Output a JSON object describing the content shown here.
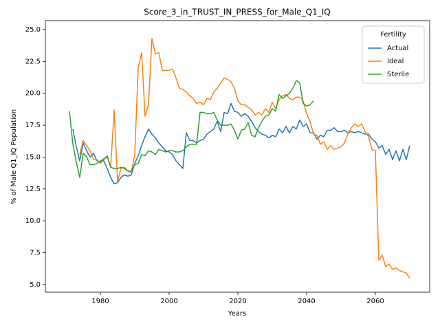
{
  "chart_data": {
    "type": "line",
    "title": "Score_3_in_TRUST_IN_PRESS_for_Male_Q1_IQ",
    "x_label": "Years",
    "y_label": "% of Male Q1_IQ Population",
    "legend_title": "Fertility",
    "legend_position": "upper right",
    "grid": false,
    "x": [
      1971,
      1972,
      1973,
      1974,
      1975,
      1976,
      1977,
      1978,
      1979,
      1980,
      1981,
      1982,
      1983,
      1984,
      1985,
      1986,
      1987,
      1988,
      1989,
      1990,
      1991,
      1992,
      1993,
      1994,
      1995,
      1996,
      1997,
      1998,
      1999,
      2000,
      2001,
      2002,
      2003,
      2004,
      2005,
      2006,
      2007,
      2008,
      2009,
      2010,
      2011,
      2012,
      2013,
      2014,
      2015,
      2016,
      2017,
      2018,
      2019,
      2020,
      2021,
      2022,
      2023,
      2024,
      2025,
      2026,
      2027,
      2028,
      2029,
      2030,
      2031,
      2032,
      2033,
      2034,
      2035,
      2036,
      2037,
      2038,
      2039,
      2040,
      2041,
      2042,
      2043,
      2044,
      2045,
      2046,
      2047,
      2048,
      2049,
      2050,
      2051,
      2052,
      2053,
      2054,
      2055,
      2056,
      2057,
      2058,
      2059,
      2060,
      2061,
      2062,
      2063,
      2064,
      2065,
      2066,
      2067,
      2068,
      2069,
      2070
    ],
    "xlim": [
      1964,
      2075.8
    ],
    "xticks": [
      1980,
      2000,
      2020,
      2040,
      2060
    ],
    "ylim": [
      4.4,
      25.7
    ],
    "yticks": [
      {
        "value": 5,
        "label": "5.0"
      },
      7.5,
      {
        "value": 10,
        "label": "10.0"
      },
      12.5,
      {
        "value": 15,
        "label": "15.0"
      },
      17.5,
      {
        "value": 20,
        "label": "20.0"
      },
      22.5,
      {
        "value": 25,
        "label": "25.0"
      }
    ],
    "series": [
      {
        "name": "Actual",
        "color": "#1f77b4",
        "values": [
          null,
          17.2,
          15.8,
          14.7,
          16.1,
          15.5,
          15.0,
          15.3,
          14.7,
          14.6,
          14.7,
          14.1,
          13.4,
          12.9,
          13.0,
          13.4,
          13.6,
          13.5,
          13.6,
          14.5,
          15.1,
          15.9,
          16.6,
          17.2,
          16.8,
          16.5,
          16.1,
          15.8,
          15.5,
          15.4,
          15.2,
          14.7,
          14.4,
          14.1,
          16.9,
          16.3,
          16.3,
          16.1,
          16.3,
          16.4,
          16.8,
          17.0,
          17.2,
          17.8,
          17.0,
          18.5,
          18.4,
          19.2,
          18.6,
          18.5,
          18.2,
          18.4,
          18.2,
          17.8,
          17.3,
          17.0,
          16.8,
          16.7,
          16.5,
          16.7,
          16.6,
          17.2,
          16.9,
          17.4,
          16.9,
          17.4,
          17.2,
          17.9,
          17.4,
          17.6,
          16.9,
          16.9,
          16.4,
          16.7,
          16.6,
          17.1,
          17.1,
          17.3,
          17.0,
          17.0,
          17.1,
          16.9,
          17.0,
          16.9,
          17.0,
          16.9,
          16.8,
          16.8,
          16.4,
          16.2,
          15.7,
          15.9,
          15.2,
          15.6,
          14.8,
          15.5,
          14.7,
          15.6,
          14.8,
          15.9
        ]
      },
      {
        "name": "Ideal",
        "color": "#ff7f0e",
        "values": [
          null,
          null,
          null,
          15.2,
          16.3,
          15.9,
          15.5,
          14.8,
          14.8,
          14.5,
          14.9,
          15.0,
          14.2,
          18.7,
          13.1,
          14.1,
          14.2,
          13.9,
          13.8,
          15.2,
          22.0,
          23.2,
          18.2,
          19.1,
          24.3,
          23.1,
          23.2,
          21.8,
          21.8,
          21.8,
          21.9,
          21.2,
          20.4,
          20.3,
          20.1,
          19.8,
          19.6,
          19.2,
          19.3,
          19.1,
          19.6,
          19.5,
          20.1,
          20.4,
          20.8,
          21.2,
          21.1,
          20.9,
          20.4,
          19.4,
          19.1,
          19.1,
          18.9,
          18.7,
          18.3,
          18.5,
          18.3,
          18.8,
          18.5,
          19.3,
          18.8,
          19.5,
          19.8,
          19.9,
          19.6,
          19.5,
          19.7,
          19.7,
          19.4,
          18.4,
          17.8,
          16.8,
          16.7,
          16.0,
          16.2,
          15.6,
          15.9,
          15.6,
          15.7,
          15.8,
          16.1,
          16.8,
          17.3,
          17.6,
          17.4,
          17.6,
          17.0,
          16.6,
          15.6,
          15.5,
          6.9,
          7.3,
          6.4,
          6.6,
          6.2,
          6.3,
          6.1,
          6.0,
          5.9,
          5.5
        ]
      },
      {
        "name": "Sterile",
        "color": "#2ca02c",
        "values": [
          18.6,
          16.0,
          14.6,
          13.4,
          15.3,
          15.0,
          14.4,
          14.4,
          14.5,
          14.7,
          14.8,
          15.1,
          14.2,
          14.1,
          14.1,
          14.2,
          14.1,
          13.9,
          13.9,
          14.4,
          14.5,
          15.2,
          15.1,
          15.5,
          15.4,
          15.2,
          15.6,
          15.5,
          15.4,
          15.5,
          15.5,
          15.4,
          15.4,
          15.5,
          15.8,
          16.0,
          16.0,
          16.0,
          18.5,
          18.5,
          18.4,
          18.4,
          18.5,
          17.9,
          17.5,
          17.5,
          17.5,
          17.6,
          17.1,
          16.4,
          17.1,
          17.2,
          17.7,
          16.7,
          16.6,
          17.3,
          17.8,
          18.2,
          18.3,
          18.8,
          18.6,
          19.9,
          19.6,
          19.8,
          20.0,
          20.4,
          21.0,
          20.8,
          19.2,
          19.0,
          19.1,
          19.4,
          null,
          null,
          null,
          null,
          null,
          null,
          null,
          null,
          null,
          null,
          null,
          null,
          null,
          null,
          null,
          null,
          null,
          null,
          null,
          null,
          null,
          null,
          null,
          null,
          null,
          null,
          null,
          null
        ]
      }
    ]
  }
}
